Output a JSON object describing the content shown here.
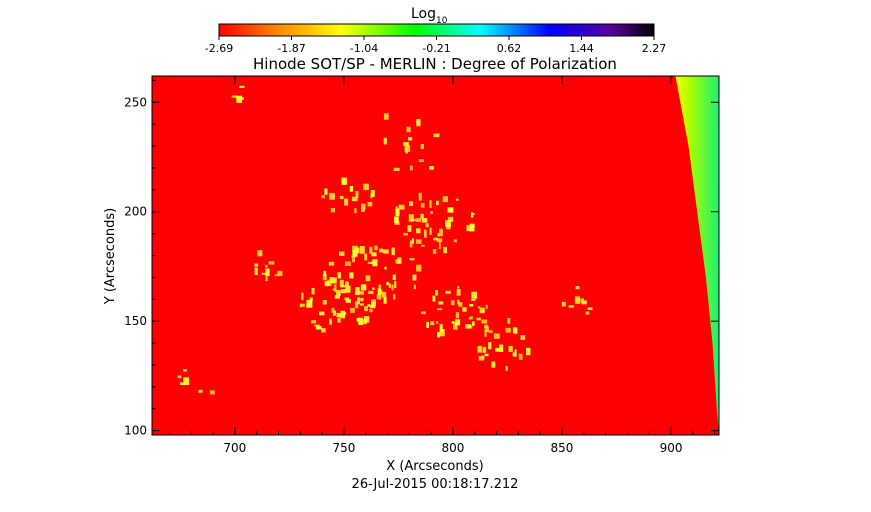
{
  "colorbar": {
    "label": "Log",
    "label_subscript": "10",
    "ticks": [
      "-2.69",
      "-1.87",
      "-1.04",
      "-0.21",
      "0.62",
      "1.44",
      "2.27"
    ]
  },
  "chart_data": {
    "type": "heatmap",
    "title": "Hinode SOT/SP - MERLIN : Degree of Polarization",
    "xlabel": "X (Arcseconds)",
    "ylabel": "Y (Arcseconds)",
    "xlim": [
      662,
      922
    ],
    "ylim": [
      98,
      262
    ],
    "xticks": [
      700,
      750,
      800,
      850,
      900
    ],
    "yticks": [
      100,
      150,
      200,
      250
    ],
    "timestamp": "26-Jul-2015 00:18:17.212",
    "colormap": [
      "#ff0000",
      "#ff8c00",
      "#ffff00",
      "#00ff00",
      "#00ffff",
      "#0000ff",
      "#5a00a0",
      "#000000"
    ],
    "background_color": "#ff0000",
    "limb_color": "#00ee66",
    "feature_color": "#ffff33",
    "limb": [
      [
        902,
        262
      ],
      [
        908,
        230
      ],
      [
        912,
        200
      ],
      [
        916,
        170
      ],
      [
        919,
        140
      ],
      [
        921,
        110
      ],
      [
        922,
        98
      ]
    ],
    "clusters": [
      {
        "x": 762,
        "y": 172,
        "rx": 22,
        "ry": 14,
        "n": 60
      },
      {
        "x": 790,
        "y": 196,
        "rx": 20,
        "ry": 14,
        "n": 45
      },
      {
        "x": 745,
        "y": 158,
        "rx": 18,
        "ry": 12,
        "n": 40
      },
      {
        "x": 800,
        "y": 155,
        "rx": 16,
        "ry": 12,
        "n": 35
      },
      {
        "x": 822,
        "y": 140,
        "rx": 12,
        "ry": 12,
        "n": 25
      },
      {
        "x": 752,
        "y": 208,
        "rx": 14,
        "ry": 8,
        "n": 18
      },
      {
        "x": 712,
        "y": 175,
        "rx": 8,
        "ry": 8,
        "n": 10
      },
      {
        "x": 780,
        "y": 235,
        "rx": 14,
        "ry": 20,
        "n": 14
      },
      {
        "x": 700,
        "y": 252,
        "rx": 10,
        "ry": 6,
        "n": 6
      },
      {
        "x": 855,
        "y": 160,
        "rx": 8,
        "ry": 10,
        "n": 8
      },
      {
        "x": 680,
        "y": 120,
        "rx": 10,
        "ry": 12,
        "n": 6
      }
    ]
  }
}
